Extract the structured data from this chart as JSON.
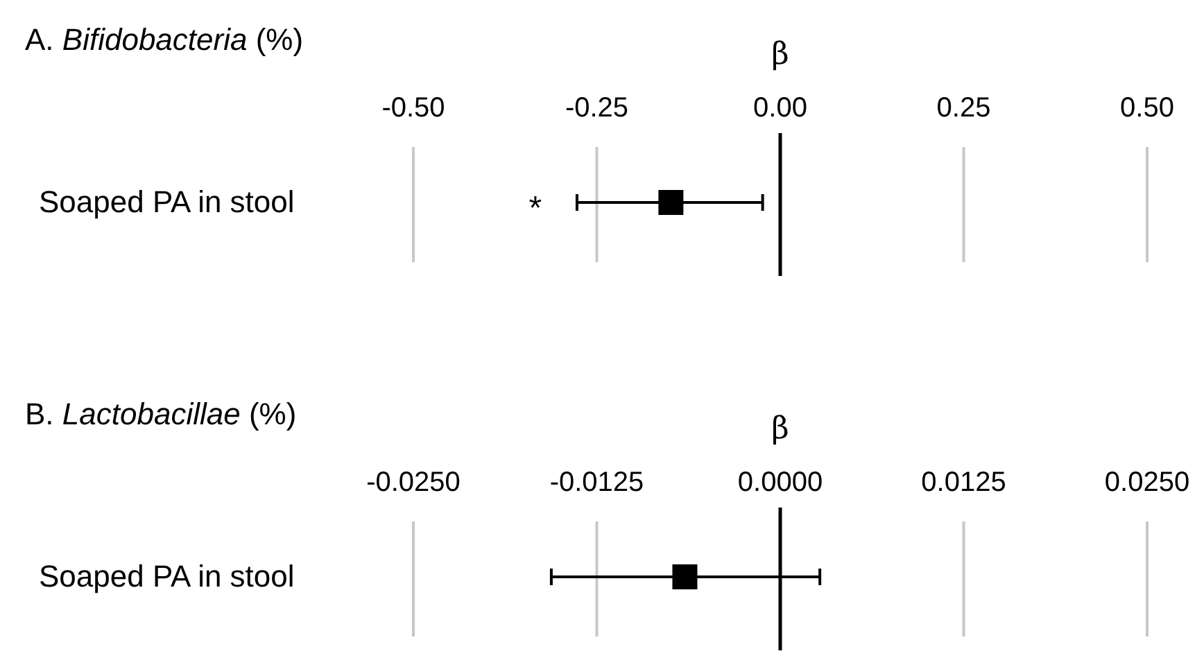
{
  "chart_data": [
    {
      "type": "scatter",
      "orientation": "horizontal",
      "title": "A. Bifidobacteria (%)",
      "xlabel": "β",
      "categories": [
        "Soaped PA in stool"
      ],
      "values": [
        -0.149
      ],
      "errors": [
        [
          -0.277,
          -0.024
        ]
      ],
      "color": "#000000",
      "marker": "square",
      "xlim": [
        -0.5,
        0.5
      ],
      "xticks": [
        {
          "value": -0.5,
          "label": "-0.50"
        },
        {
          "value": -0.25,
          "label": "-0.25"
        },
        {
          "value": 0,
          "label": "0.00"
        },
        0.25,
        {
          "value": 0.5,
          "label": "0.50"
        }
      ],
      "grid": "x",
      "ref_lines": [
        {
          "axis": "x",
          "value": 0,
          "color": "#000000"
        }
      ],
      "annotations": [
        "*"
      ]
    },
    {
      "type": "scatter",
      "orientation": "horizontal",
      "title": "B. Lactobacillae (%)",
      "xlabel": "β",
      "categories": [
        "Soaped PA in stool"
      ],
      "values": [
        -0.0065
      ],
      "errors": [
        [
          -0.0156,
          0.0027
        ]
      ],
      "color": "#000000",
      "marker": "square",
      "xlim": [
        -0.025,
        0.025
      ],
      "xticks": [
        {
          "value": -0.025,
          "label": "-0.0250"
        },
        {
          "value": -0.0125,
          "label": "-0.0125"
        },
        {
          "value": 0,
          "label": "0.0000"
        },
        0.0125,
        {
          "value": 0.025,
          "label": "0.0250"
        }
      ],
      "grid": "x",
      "ref_lines": [
        {
          "axis": "x",
          "value": 0,
          "color": "#000000"
        }
      ]
    }
  ]
}
